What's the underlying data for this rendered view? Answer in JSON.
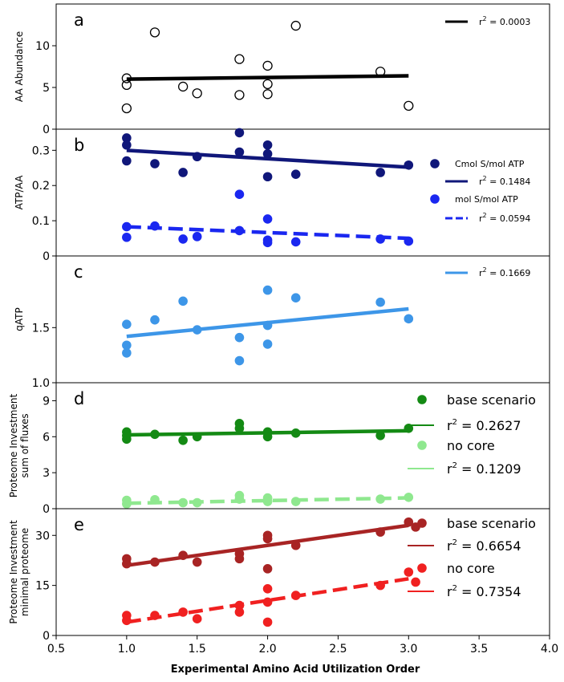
{
  "figure": {
    "xlabel": "Experimental Amino Acid Utilization Order",
    "xticks": [
      0.5,
      1.0,
      1.5,
      2.0,
      2.5,
      3.0,
      3.5,
      4.0
    ],
    "xlim": [
      0.5,
      4.0
    ]
  },
  "chart_data": [
    {
      "type": "scatter",
      "panel_label": "a",
      "ylabel": [
        "AA Abundance"
      ],
      "ylim": [
        0,
        15
      ],
      "yticks": [
        0,
        5,
        10
      ],
      "legend_position": "top-right",
      "series": [
        {
          "name": "",
          "marker": "open-circle",
          "color": "#000000",
          "points": [
            [
              1.0,
              6.1
            ],
            [
              1.0,
              5.3
            ],
            [
              1.0,
              2.5
            ],
            [
              1.2,
              11.6
            ],
            [
              1.4,
              5.1
            ],
            [
              1.5,
              4.3
            ],
            [
              1.8,
              8.4
            ],
            [
              1.8,
              4.1
            ],
            [
              2.0,
              7.6
            ],
            [
              2.0,
              5.4
            ],
            [
              2.0,
              4.2
            ],
            [
              2.2,
              12.4
            ],
            [
              2.8,
              6.9
            ],
            [
              3.0,
              2.8
            ]
          ],
          "fit": {
            "x": [
              1.0,
              3.0
            ],
            "y": [
              6.0,
              6.4
            ],
            "dashed": false,
            "color": "#000000",
            "r2": "r² = 0.0003"
          }
        }
      ]
    },
    {
      "type": "scatter",
      "panel_label": "b",
      "ylabel": [
        "ATP/AA"
      ],
      "ylim": [
        0,
        0.36
      ],
      "yticks": [
        0.0,
        0.1,
        0.2,
        0.3
      ],
      "legend_position": "right",
      "series": [
        {
          "name": "Cmol S/mol ATP",
          "marker": "filled-circle",
          "color": "#10177a",
          "points": [
            [
              1.0,
              0.335
            ],
            [
              1.0,
              0.315
            ],
            [
              1.0,
              0.27
            ],
            [
              1.2,
              0.262
            ],
            [
              1.4,
              0.237
            ],
            [
              1.5,
              0.282
            ],
            [
              1.8,
              0.35
            ],
            [
              1.8,
              0.295
            ],
            [
              2.0,
              0.315
            ],
            [
              2.0,
              0.29
            ],
            [
              2.0,
              0.225
            ],
            [
              2.2,
              0.232
            ],
            [
              2.8,
              0.237
            ],
            [
              3.0,
              0.258
            ]
          ],
          "fit": {
            "x": [
              1.0,
              3.0
            ],
            "y": [
              0.3,
              0.252
            ],
            "dashed": false,
            "color": "#10177a",
            "r2": "r² = 0.1484"
          }
        },
        {
          "name": "mol S/mol ATP",
          "marker": "filled-circle",
          "color": "#1a27f0",
          "points": [
            [
              1.0,
              0.083
            ],
            [
              1.0,
              0.053
            ],
            [
              1.2,
              0.085
            ],
            [
              1.4,
              0.048
            ],
            [
              1.5,
              0.055
            ],
            [
              1.8,
              0.175
            ],
            [
              1.8,
              0.072
            ],
            [
              2.0,
              0.105
            ],
            [
              2.0,
              0.045
            ],
            [
              2.0,
              0.038
            ],
            [
              2.2,
              0.04
            ],
            [
              2.8,
              0.048
            ],
            [
              3.0,
              0.042
            ]
          ],
          "fit": {
            "x": [
              1.0,
              3.0
            ],
            "y": [
              0.083,
              0.05
            ],
            "dashed": true,
            "color": "#1a27f0",
            "r2": "r² = 0.0594"
          }
        }
      ]
    },
    {
      "type": "scatter",
      "panel_label": "c",
      "ylabel": [
        "qATP"
      ],
      "ylim": [
        1.0,
        2.15
      ],
      "yticks": [
        1.0,
        1.5
      ],
      "yticklabels": [
        "1.0",
        "1.5"
      ],
      "legend_position": "top-right",
      "series": [
        {
          "name": "",
          "marker": "filled-circle",
          "color": "#3d96e8",
          "points": [
            [
              1.0,
              1.53
            ],
            [
              1.0,
              1.34
            ],
            [
              1.0,
              1.27
            ],
            [
              1.2,
              1.57
            ],
            [
              1.4,
              1.74
            ],
            [
              1.5,
              1.48
            ],
            [
              1.8,
              1.41
            ],
            [
              1.8,
              1.2
            ],
            [
              2.0,
              1.84
            ],
            [
              2.0,
              1.52
            ],
            [
              2.0,
              1.35
            ],
            [
              2.2,
              1.77
            ],
            [
              2.8,
              1.73
            ],
            [
              3.0,
              1.58
            ]
          ],
          "fit": {
            "x": [
              1.0,
              3.0
            ],
            "y": [
              1.42,
              1.67
            ],
            "dashed": false,
            "color": "#3d96e8",
            "r2": "r² = 0.1669"
          }
        }
      ]
    },
    {
      "type": "scatter",
      "panel_label": "d",
      "ylabel": [
        "Proteome Investment",
        "sum of fluxes"
      ],
      "ylim": [
        0,
        10.5
      ],
      "yticks": [
        0,
        3,
        6,
        9
      ],
      "legend_position": "right",
      "series": [
        {
          "name": "base scenario",
          "marker": "filled-circle",
          "color": "#148a14",
          "points": [
            [
              1.0,
              6.4
            ],
            [
              1.0,
              6.1
            ],
            [
              1.0,
              5.8
            ],
            [
              1.2,
              6.2
            ],
            [
              1.4,
              5.7
            ],
            [
              1.5,
              6.0
            ],
            [
              1.8,
              7.1
            ],
            [
              1.8,
              6.7
            ],
            [
              2.0,
              6.4
            ],
            [
              2.0,
              6.0
            ],
            [
              2.2,
              6.3
            ],
            [
              2.8,
              6.1
            ],
            [
              3.0,
              6.7
            ]
          ],
          "fit": {
            "x": [
              1.0,
              3.0
            ],
            "y": [
              6.15,
              6.5
            ],
            "dashed": false,
            "color": "#148a14",
            "r2": "r² = 0.2627"
          }
        },
        {
          "name": "no core",
          "marker": "filled-circle",
          "color": "#8fe88f",
          "points": [
            [
              1.0,
              0.7
            ],
            [
              1.0,
              0.4
            ],
            [
              1.2,
              0.75
            ],
            [
              1.4,
              0.5
            ],
            [
              1.5,
              0.5
            ],
            [
              1.8,
              1.1
            ],
            [
              1.8,
              0.8
            ],
            [
              2.0,
              0.9
            ],
            [
              2.0,
              0.6
            ],
            [
              2.2,
              0.6
            ],
            [
              2.8,
              0.8
            ],
            [
              3.0,
              0.95
            ]
          ],
          "fit": {
            "x": [
              1.0,
              3.0
            ],
            "y": [
              0.45,
              0.9
            ],
            "dashed": true,
            "color": "#8fe88f",
            "r2": "r² = 0.1209"
          }
        }
      ]
    },
    {
      "type": "scatter",
      "panel_label": "e",
      "ylabel": [
        "Proteome Investment",
        "minimal proteome"
      ],
      "ylim": [
        0,
        38
      ],
      "yticks": [
        0,
        15,
        30
      ],
      "legend_position": "right",
      "series": [
        {
          "name": "base scenario",
          "marker": "filled-circle",
          "color": "#a82424",
          "points": [
            [
              1.0,
              23.0
            ],
            [
              1.0,
              21.5
            ],
            [
              1.2,
              22.0
            ],
            [
              1.4,
              24.0
            ],
            [
              1.5,
              22.0
            ],
            [
              1.8,
              24.5
            ],
            [
              1.8,
              23.0
            ],
            [
              2.0,
              30.0
            ],
            [
              2.0,
              29.0
            ],
            [
              2.0,
              20.0
            ],
            [
              2.2,
              27.0
            ],
            [
              2.8,
              31.0
            ],
            [
              3.0,
              34.0
            ],
            [
              3.05,
              32.5
            ]
          ],
          "fit": {
            "x": [
              1.0,
              3.0
            ],
            "y": [
              21.0,
              33.0
            ],
            "dashed": false,
            "color": "#a82424",
            "r2": "r² = 0.6654"
          }
        },
        {
          "name": "no core",
          "marker": "filled-circle",
          "color": "#f02020",
          "points": [
            [
              1.0,
              6.0
            ],
            [
              1.0,
              4.5
            ],
            [
              1.2,
              6.0
            ],
            [
              1.4,
              7.0
            ],
            [
              1.5,
              5.0
            ],
            [
              1.8,
              9.0
            ],
            [
              1.8,
              7.0
            ],
            [
              2.0,
              14.0
            ],
            [
              2.0,
              10.0
            ],
            [
              2.0,
              4.0
            ],
            [
              2.2,
              12.0
            ],
            [
              2.8,
              15.0
            ],
            [
              3.0,
              19.0
            ],
            [
              3.05,
              16.0
            ]
          ],
          "fit": {
            "x": [
              1.0,
              3.0
            ],
            "y": [
              4.0,
              17.0
            ],
            "dashed": true,
            "color": "#f02020",
            "r2": "r² = 0.7354"
          }
        }
      ]
    }
  ]
}
